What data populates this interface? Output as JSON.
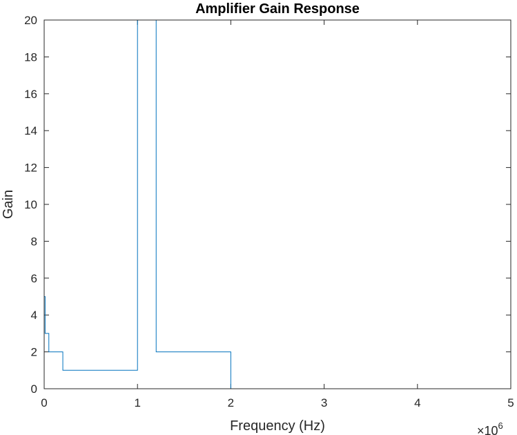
{
  "chart_data": {
    "type": "line",
    "title": "Amplifier Gain Response",
    "xlabel": "Frequency (Hz)",
    "ylabel": "Gain",
    "x_exponent_label": "×10",
    "x_exponent_power": "6",
    "xlim": [
      0,
      5
    ],
    "ylim": [
      0,
      20
    ],
    "x_ticks": [
      0,
      1,
      2,
      3,
      4,
      5
    ],
    "x_tick_labels": [
      "0",
      "1",
      "2",
      "3",
      "4",
      "5"
    ],
    "y_ticks": [
      0,
      2,
      4,
      6,
      8,
      10,
      12,
      14,
      16,
      18,
      20
    ],
    "y_tick_labels": [
      "0",
      "2",
      "4",
      "6",
      "8",
      "10",
      "12",
      "14",
      "16",
      "18",
      "20"
    ],
    "x_unit_multiplier": 1000000,
    "grid": false,
    "series": [
      {
        "color": "#0072BD",
        "step": true,
        "x": [
          0,
          0.01,
          0.01,
          0.05,
          0.05,
          0.2,
          0.2,
          1.0,
          1.0,
          1.2,
          1.2,
          2.0,
          2.0,
          5.0
        ],
        "y": [
          5,
          5,
          3,
          3,
          2,
          2,
          1,
          1,
          20,
          20,
          2,
          2,
          0,
          0
        ]
      }
    ]
  }
}
